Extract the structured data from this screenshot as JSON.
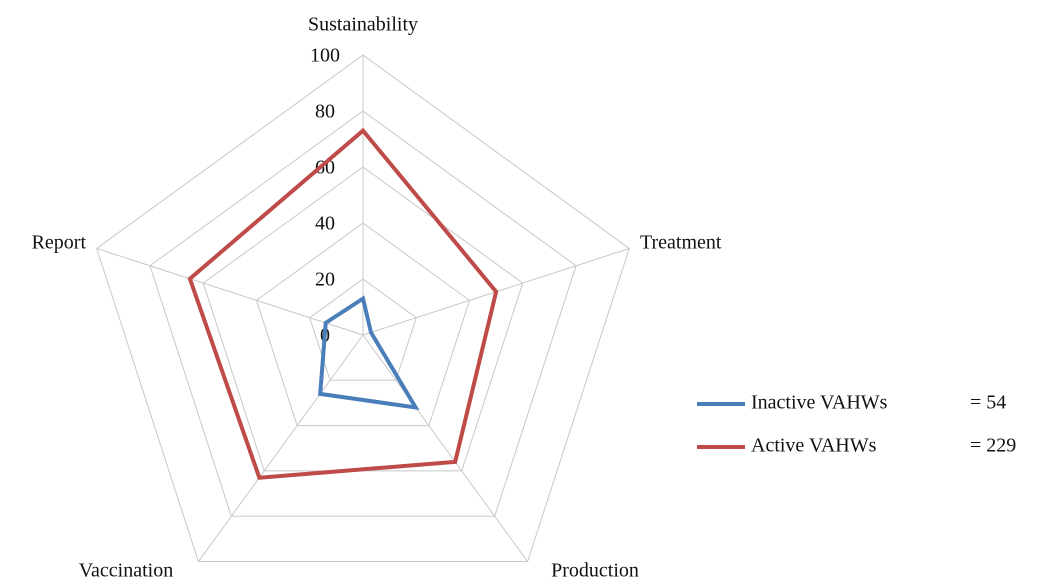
{
  "chart_data": {
    "type": "radar",
    "categories": [
      "Sustainability",
      "Treatment",
      "Production",
      "Vaccination",
      "Report"
    ],
    "series": [
      {
        "name": "Inactive VAHWs",
        "color": "#4a7ebb",
        "values": [
          13,
          3,
          32,
          26,
          14
        ]
      },
      {
        "name": "Active VAHWs",
        "color": "#be4b48",
        "values": [
          73,
          50,
          56,
          63,
          65
        ]
      }
    ],
    "legend_notes": [
      "= 54",
      "= 229"
    ],
    "rlim": [
      0,
      100
    ],
    "rticks": [
      0,
      20,
      40,
      60,
      80,
      100
    ],
    "grid": true,
    "legend": "right"
  }
}
